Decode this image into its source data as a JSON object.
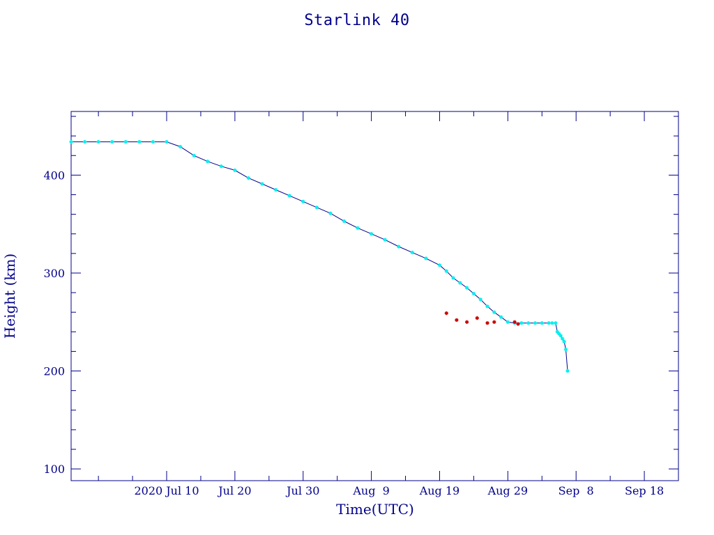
{
  "chart_data": {
    "type": "line",
    "title": "Starlink 40",
    "xlabel": "Time(UTC)",
    "ylabel": "Height (km)",
    "x_type": "date",
    "xlim": [
      "2020-06-26",
      "2020-09-23"
    ],
    "ylim": [
      88,
      465
    ],
    "x_ticks": [
      {
        "date": "2020-07-10",
        "label": "2020 Jul 10"
      },
      {
        "date": "2020-07-20",
        "label": "Jul 20"
      },
      {
        "date": "2020-07-30",
        "label": "Jul 30"
      },
      {
        "date": "2020-08-09",
        "label": "Aug  9"
      },
      {
        "date": "2020-08-19",
        "label": "Aug 19"
      },
      {
        "date": "2020-08-29",
        "label": "Aug 29"
      },
      {
        "date": "2020-09-08",
        "label": "Sep  8"
      },
      {
        "date": "2020-09-18",
        "label": "Sep 18"
      }
    ],
    "y_ticks": [
      100,
      200,
      300,
      400
    ],
    "grid": false,
    "colors": {
      "text": "#00008b",
      "axes": "#00008b",
      "line": "#00008b",
      "points": "#00f0f0",
      "highlight": "#cc0000"
    },
    "series": [
      {
        "line": true,
        "point_color": "#00f0f0",
        "x": [
          "2020-06-26",
          "2020-06-28",
          "2020-06-30",
          "2020-07-02",
          "2020-07-04",
          "2020-07-06",
          "2020-07-08",
          "2020-07-10",
          "2020-07-12",
          "2020-07-14",
          "2020-07-16",
          "2020-07-18",
          "2020-07-20",
          "2020-07-22",
          "2020-07-24",
          "2020-07-26",
          "2020-07-28",
          "2020-07-30",
          "2020-08-01",
          "2020-08-03",
          "2020-08-05",
          "2020-08-07",
          "2020-08-09",
          "2020-08-11",
          "2020-08-13",
          "2020-08-15",
          "2020-08-17",
          "2020-08-19",
          "2020-08-20",
          "2020-08-21",
          "2020-08-22",
          "2020-08-23",
          "2020-08-24",
          "2020-08-25",
          "2020-08-26",
          "2020-08-27",
          "2020-08-28",
          "2020-08-29",
          "2020-08-30",
          "2020-08-31",
          "2020-09-01",
          "2020-09-02",
          "2020-09-03",
          "2020-09-04",
          "2020-09-04T12:00",
          "2020-09-05",
          "2020-09-05T06:00",
          "2020-09-05T12:00",
          "2020-09-05T18:00",
          "2020-09-06",
          "2020-09-06T06:00",
          "2020-09-06T12:00",
          "2020-09-06T18:00"
        ],
        "y": [
          434,
          434,
          434,
          434,
          434,
          434,
          434,
          434,
          429,
          420,
          414,
          409,
          405,
          397,
          391,
          385,
          379,
          373,
          367,
          361,
          353,
          346,
          340,
          334,
          327,
          321,
          315,
          308,
          302,
          295,
          290,
          285,
          279,
          273,
          266,
          260,
          255,
          250,
          249,
          249,
          249,
          249,
          249,
          249,
          249,
          249,
          240,
          238,
          236,
          233,
          230,
          222,
          200
        ]
      },
      {
        "line": false,
        "point_color": "#cc0000",
        "x": [
          "2020-08-20",
          "2020-08-21T12:00",
          "2020-08-23",
          "2020-08-24T12:00",
          "2020-08-26",
          "2020-08-27",
          "2020-08-30",
          "2020-08-30T12:00"
        ],
        "y": [
          259,
          252,
          250,
          254,
          249,
          250,
          250,
          248
        ]
      }
    ]
  }
}
